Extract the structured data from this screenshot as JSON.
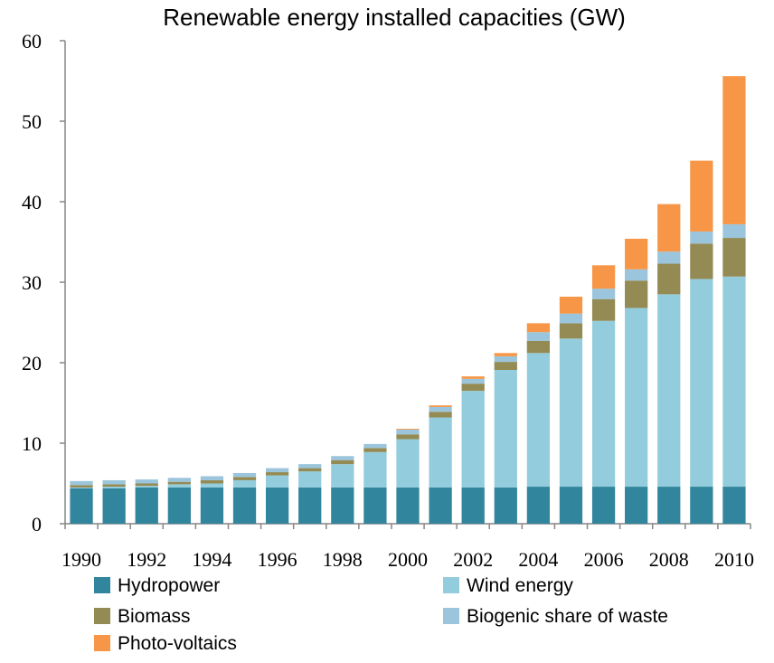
{
  "chart_data": {
    "type": "bar",
    "stacked": true,
    "title": "Renewable energy installed capacities (GW)",
    "xlabel": "",
    "ylabel": "",
    "ylim": [
      0,
      60
    ],
    "yticks": [
      "0",
      "10",
      "20",
      "30",
      "40",
      "50",
      "60"
    ],
    "xtick_labels": [
      "1990",
      "1992",
      "1994",
      "1996",
      "1998",
      "2000",
      "2002",
      "2004",
      "2006",
      "2008",
      "2010"
    ],
    "categories": [
      "1990",
      "1991",
      "1992",
      "1993",
      "1994",
      "1995",
      "1996",
      "1997",
      "1998",
      "1999",
      "2000",
      "2001",
      "2002",
      "2003",
      "2004",
      "2005",
      "2006",
      "2007",
      "2008",
      "2009",
      "2010"
    ],
    "grid": false,
    "legend_position": "bottom",
    "series": [
      {
        "name": "Hydropower",
        "color": "#31859C",
        "values": [
          4.4,
          4.4,
          4.5,
          4.5,
          4.5,
          4.5,
          4.5,
          4.5,
          4.5,
          4.5,
          4.5,
          4.5,
          4.5,
          4.5,
          4.6,
          4.6,
          4.6,
          4.6,
          4.6,
          4.6,
          4.6
        ]
      },
      {
        "name": "Wind energy",
        "color": "#93CDDD",
        "values": [
          0.1,
          0.2,
          0.2,
          0.4,
          0.5,
          0.9,
          1.5,
          2.0,
          2.9,
          4.4,
          6.0,
          8.7,
          12.0,
          14.6,
          16.6,
          18.4,
          20.6,
          22.2,
          23.9,
          25.8,
          26.1
        ]
      },
      {
        "name": "Biomass",
        "color": "#948A54",
        "values": [
          0.3,
          0.3,
          0.3,
          0.3,
          0.4,
          0.4,
          0.4,
          0.4,
          0.5,
          0.5,
          0.6,
          0.7,
          0.9,
          1.0,
          1.5,
          1.9,
          2.7,
          3.4,
          3.8,
          4.4,
          4.8
        ]
      },
      {
        "name": "Biogenic share of waste",
        "color": "#9BC5DC",
        "values": [
          0.5,
          0.5,
          0.5,
          0.5,
          0.5,
          0.5,
          0.5,
          0.5,
          0.5,
          0.5,
          0.6,
          0.6,
          0.6,
          0.7,
          1.1,
          1.2,
          1.3,
          1.4,
          1.5,
          1.5,
          1.7
        ]
      },
      {
        "name": "Photo-voltaics",
        "color": "#F79646",
        "values": [
          0,
          0,
          0,
          0,
          0,
          0,
          0,
          0,
          0,
          0,
          0.1,
          0.2,
          0.3,
          0.4,
          1.1,
          2.1,
          2.9,
          3.8,
          5.9,
          8.8,
          18.4
        ]
      }
    ]
  }
}
